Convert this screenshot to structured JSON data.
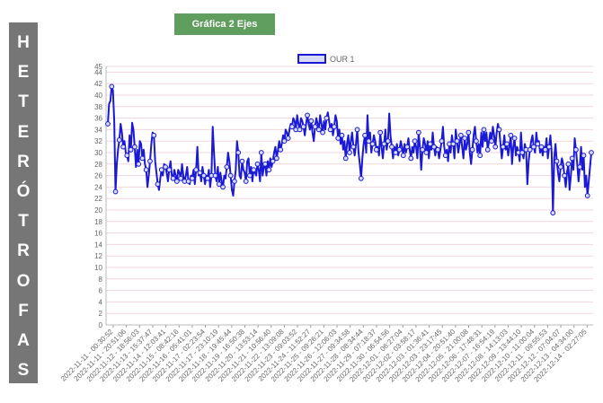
{
  "sidebar": {
    "letters": [
      "H",
      "E",
      "T",
      "E",
      "R",
      "Ó",
      "T",
      "R",
      "O",
      "F",
      "A",
      "S"
    ]
  },
  "toolbar": {
    "chart_button_label": "Gráfica 2 Ejes"
  },
  "colors": {
    "series": "#1a1ad6",
    "marker_fill": "#d7dbf5",
    "sidebar_bg": "#767676",
    "button_bg": "#5f9e5f",
    "grid": "#f2d6dc"
  },
  "chart_data": {
    "type": "line",
    "title": "",
    "xlabel": "",
    "ylabel": "",
    "ylim": [
      0,
      45
    ],
    "y_ticks": [
      0,
      2,
      4,
      6,
      8,
      10,
      12,
      14,
      16,
      18,
      20,
      22,
      24,
      26,
      28,
      30,
      32,
      34,
      36,
      38,
      40,
      42,
      44,
      45
    ],
    "grid": true,
    "legend_position": "top-center",
    "x_labels": [
      "2022-11-11 - 00:30:52",
      "2022-11-11 - 20:51:06",
      "2022-11-12 - 18:56:03",
      "2022-11-13 - 15:37:47",
      "2022-11-14 - 12:03:41",
      "2022-11-15 - 08:42:16",
      "2022-11-16 - 05:41:01",
      "2022-11-17 - 02:23:54",
      "2022-11-17 - 23:10:19",
      "2022-11-18 - 19:45:44",
      "2022-11-19 - 16:50:38",
      "2022-11-20 - 13:53:14",
      "2022-11-21 - 10:56:40",
      "2022-11-22 - 13:09:08",
      "2022-11-23 - 09:03:52",
      "2022-11-24 - 11:52:27",
      "2022-11-25 - 09:26:21",
      "2022-11-26 - 12:06:03",
      "2022-11-27 - 09:34:58",
      "2022-11-28 - 08:34:44",
      "2022-11-29 - 07:18:37",
      "2022-11-30 - 06:54:56",
      "2022-12-01 - 06:27:04",
      "2022-12-02 - 03:58:17",
      "2022-12-03 - 01:36:41",
      "2022-12-03 - 23:17:45",
      "2022-12-04 - 20:51:40",
      "2022-12-05 - 21:00:08",
      "2022-12-06 - 17:48:31",
      "2022-12-07 - 16:54:19",
      "2022-12-08 - 14:13:03",
      "2022-12-09 - 13:44:10",
      "2022-12-10 - 11:00:04",
      "2022-12-11 - 09:55:53",
      "2022-12-12 - 07:04:07",
      "2022-12-13 - 04:34:00",
      "2022-12-14 - 02:27:05"
    ],
    "series": [
      {
        "name": "OUR 1",
        "values": [
          35.0,
          38.5,
          39.0,
          41.5,
          40.8,
          35.5,
          23.2,
          28.0,
          30.5,
          32.2,
          35.0,
          33.5,
          31.0,
          32.0,
          30.0,
          29.5,
          28.5,
          33.0,
          30.5,
          35.2,
          34.0,
          31.0,
          27.5,
          30.5,
          28.0,
          32.0,
          31.5,
          29.0,
          30.5,
          28.0,
          27.0,
          24.0,
          26.0,
          28.5,
          31.5,
          33.5,
          33.0,
          28.5,
          26.5,
          24.5,
          23.5,
          25.5,
          27.0,
          26.0,
          28.0,
          27.5,
          26.5,
          25.0,
          27.0,
          28.5,
          26.0,
          25.5,
          27.0,
          26.0,
          25.0,
          27.0,
          26.5,
          25.5,
          28.0,
          26.0,
          25.0,
          26.0,
          27.5,
          25.0,
          24.5,
          26.0,
          25.5,
          27.0,
          24.5,
          27.0,
          31.0,
          26.0,
          26.5,
          25.0,
          27.5,
          26.0,
          24.5,
          26.0,
          25.5,
          27.0,
          24.0,
          26.0,
          34.5,
          30.0,
          26.0,
          25.0,
          27.5,
          24.5,
          26.5,
          25.0,
          24.0,
          26.0,
          25.5,
          27.5,
          30.0,
          28.5,
          26.0,
          23.5,
          22.5,
          25.0,
          27.0,
          32.0,
          30.0,
          26.0,
          25.5,
          28.5,
          27.0,
          26.5,
          25.0,
          28.5,
          29.0,
          26.0,
          27.5,
          25.0,
          27.0,
          26.5,
          26.0,
          28.0,
          27.0,
          25.0,
          30.0,
          26.0,
          27.5,
          28.0,
          26.0,
          28.5,
          27.0,
          29.0,
          27.5,
          28.5,
          30.0,
          31.0,
          29.0,
          30.5,
          32.0,
          30.5,
          31.5,
          33.0,
          32.0,
          34.0,
          33.5,
          32.5,
          34.0,
          35.0,
          34.5,
          36.0,
          35.5,
          34.0,
          36.5,
          35.0,
          34.0,
          36.0,
          35.5,
          34.5,
          33.0,
          35.0,
          36.5,
          35.0,
          34.0,
          35.5,
          33.5,
          32.0,
          34.5,
          36.0,
          35.0,
          34.0,
          36.5,
          35.0,
          33.5,
          35.5,
          34.0,
          36.0,
          37.0,
          35.5,
          34.0,
          35.0,
          33.0,
          34.5,
          36.5,
          35.5,
          32.5,
          34.0,
          31.5,
          33.0,
          30.5,
          32.0,
          29.0,
          31.5,
          33.0,
          30.0,
          32.0,
          33.5,
          31.0,
          29.5,
          31.5,
          34.0,
          30.0,
          28.0,
          25.5,
          29.0,
          31.5,
          33.0,
          30.0,
          36.5,
          32.0,
          33.5,
          30.0,
          31.5,
          33.0,
          32.0,
          30.5,
          31.0,
          29.5,
          33.5,
          31.0,
          29.0,
          31.5,
          34.0,
          30.5,
          32.0,
          36.8,
          33.0,
          31.0,
          29.0,
          31.0,
          30.0,
          31.5,
          29.5,
          30.5,
          32.0,
          31.0,
          29.5,
          31.5,
          30.0,
          31.0,
          32.5,
          30.5,
          29.0,
          31.0,
          30.0,
          32.0,
          31.0,
          29.0,
          33.5,
          31.0,
          27.0,
          30.5,
          32.5,
          31.5,
          30.0,
          32.0,
          29.0,
          31.5,
          30.5,
          33.5,
          31.0,
          29.5,
          31.0,
          30.5,
          29.0,
          30.5,
          32.0,
          34.5,
          31.0,
          29.5,
          30.5,
          28.5,
          31.5,
          30.0,
          33.0,
          31.5,
          29.0,
          34.0,
          32.0,
          30.0,
          31.5,
          33.0,
          31.0,
          29.0,
          32.5,
          30.5,
          31.5,
          33.5,
          30.0,
          28.0,
          30.5,
          33.0,
          34.5,
          32.0,
          30.0,
          31.5,
          29.5,
          33.5,
          31.0,
          34.0,
          32.0,
          33.5,
          30.5,
          32.0,
          33.5,
          32.0,
          34.5,
          33.0,
          31.0,
          33.5,
          35.0,
          34.0,
          31.5,
          29.0,
          31.0,
          33.0,
          30.5,
          31.5,
          29.5,
          31.0,
          33.0,
          28.0,
          31.0,
          32.5,
          29.5,
          31.0,
          30.0,
          28.5,
          33.5,
          30.0,
          29.0,
          31.5,
          30.5,
          24.5,
          28.5,
          30.5,
          32.0,
          33.0,
          31.0,
          30.0,
          33.5,
          31.5,
          32.0,
          30.0,
          31.0,
          29.5,
          31.0,
          30.5,
          32.5,
          29.0,
          31.0,
          33.0,
          30.0,
          19.5,
          29.0,
          31.5,
          28.5,
          26.5,
          25.0,
          27.5,
          29.0,
          28.0,
          26.0,
          24.0,
          26.5,
          28.0,
          23.5,
          26.0,
          29.0,
          27.0,
          32.5,
          30.5,
          28.0,
          25.0,
          27.5,
          31.0,
          27.0,
          29.5,
          24.0,
          26.0,
          22.5,
          25.0,
          27.5,
          30.0
        ]
      }
    ]
  }
}
